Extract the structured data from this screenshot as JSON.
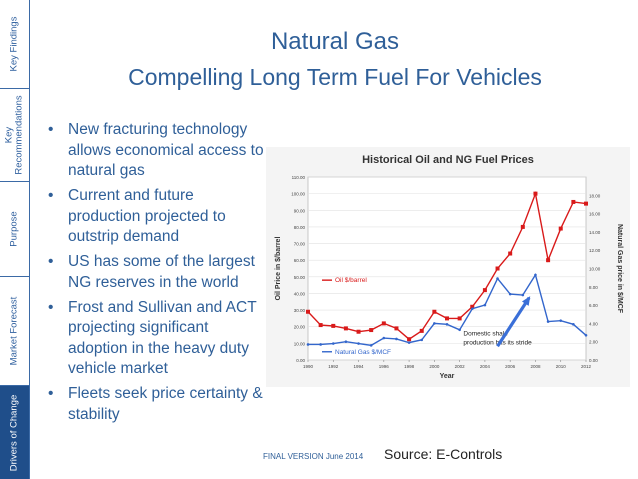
{
  "sidebar": {
    "tabs": [
      {
        "label": "Key Findings"
      },
      {
        "label": "Key Recommendations"
      },
      {
        "label": "Purpose"
      },
      {
        "label": "Market Forecast"
      },
      {
        "label": "Drivers of Change"
      }
    ]
  },
  "header": {
    "title_line1": "Natural Gas",
    "title_line2": "Compelling Long Term Fuel For Vehicles"
  },
  "bullets": [
    "New fracturing technology allows economical access to natural gas",
    "Current and future production projected to outstrip demand",
    "US has some of the largest NG reserves in the world",
    "Frost and Sullivan and ACT projecting significant adoption in the heavy duty vehicle market",
    "Fleets seek price certainty & stability"
  ],
  "footer": {
    "version": "FINAL VERSION June 2014",
    "source": "Source: E-Controls"
  },
  "colors": {
    "accent": "#2f5f98",
    "oil": "#d91a1a",
    "gas": "#3366cc"
  },
  "chart_data": {
    "type": "line",
    "title": "Historical Oil and NG Fuel Prices",
    "xlabel": "Year",
    "ylabel": "Oil Price in $/barrel",
    "y2label": "Natural Gas price in $/MCF",
    "x": [
      1990,
      1991,
      1992,
      1993,
      1994,
      1995,
      1996,
      1997,
      1998,
      1999,
      2000,
      2001,
      2002,
      2003,
      2004,
      2005,
      2006,
      2007,
      2008,
      2009,
      2010,
      2011,
      2012
    ],
    "x_tick_labels": [
      "1990",
      "1992",
      "1994",
      "1996",
      "1998",
      "2000",
      "2002",
      "2004",
      "2006",
      "2008",
      "2010",
      "2012"
    ],
    "ylim": [
      0,
      110
    ],
    "y_ticks": [
      "0.00",
      "10.00",
      "20.00",
      "30.00",
      "40.00",
      "50.00",
      "60.00",
      "70.00",
      "80.00",
      "90.00",
      "100.00",
      "110.00"
    ],
    "y2lim": [
      0,
      20
    ],
    "y2_ticks": [
      "0.00",
      "2.00",
      "4.00",
      "6.00",
      "8.00",
      "10.00",
      "12.00",
      "14.00",
      "16.00",
      "18.00"
    ],
    "series": [
      {
        "name": "Oil $/barrel",
        "axis": "left",
        "values": [
          29,
          21,
          20.5,
          19,
          17,
          18,
          22,
          19,
          12.5,
          17.5,
          29,
          25,
          25,
          32,
          42,
          55,
          64,
          80,
          100,
          60,
          79,
          95,
          94
        ]
      },
      {
        "name": "Natural Gas $/MCF",
        "axis": "right",
        "values": [
          1.7,
          1.7,
          1.8,
          2.0,
          1.8,
          1.6,
          2.4,
          2.3,
          1.9,
          2.2,
          4.0,
          3.9,
          3.3,
          5.6,
          6.0,
          8.9,
          7.2,
          7.1,
          9.3,
          4.2,
          4.3,
          3.9,
          2.7
        ]
      }
    ],
    "legend": [
      {
        "label": "Oil $/barrel",
        "position": "center-left"
      },
      {
        "label": "Natural Gas $/MCF",
        "position": "bottom-left"
      }
    ],
    "annotation": {
      "text_line1": "Domestic shale",
      "text_line2": "production hits its stride",
      "arrow_from_year": 2005,
      "arrow_from_value": 1.5,
      "arrow_to_year": 2007.5,
      "arrow_to_value": 6.8
    }
  }
}
